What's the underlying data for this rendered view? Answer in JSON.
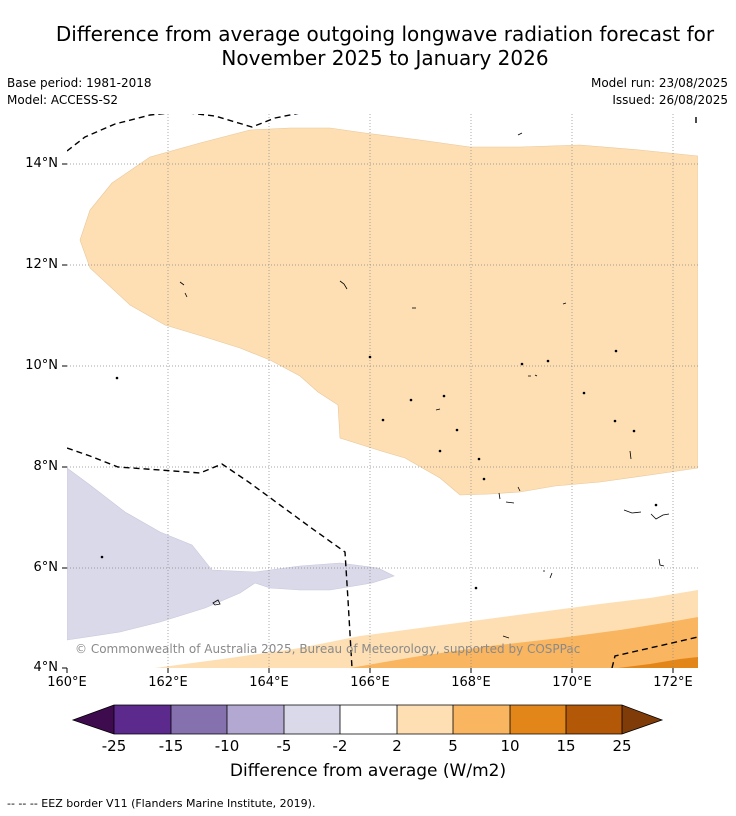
{
  "header": {
    "title_line1": "Difference from average outgoing longwave radiation forecast for",
    "title_line2": "November 2025 to January 2026"
  },
  "meta": {
    "base_period": "Base period: 1981-2018",
    "model": "Model: ACCESS-S2",
    "model_run": "Model run: 23/08/2025",
    "issued": "Issued: 26/08/2025"
  },
  "map": {
    "lat_labels": [
      "14°N",
      "12°N",
      "10°N",
      "8°N",
      "6°N",
      "4°N"
    ],
    "lon_labels": [
      "160°E",
      "162°E",
      "164°E",
      "166°E",
      "168°E",
      "170°E",
      "172°E"
    ],
    "copyright": "© Commonwealth of Australia 2025, Bureau of Meteorology, supported by COSPPac",
    "colors": {
      "positive_2_5": "#fddfb3",
      "positive_5_10": "#f9b55f",
      "positive_10_15": "#e3861a",
      "negative_2_5": "#d9d9ea"
    }
  },
  "colorbar": {
    "ticks": [
      "-25",
      "-15",
      "-10",
      "-5",
      "-2",
      "2",
      "5",
      "10",
      "15",
      "25"
    ],
    "label": "Difference from average (W/m2)",
    "colors": [
      "#3f0b4f",
      "#5b2a8c",
      "#8471ae",
      "#b2a8d1",
      "#d9d9ea",
      "#ffffff",
      "#fddfb3",
      "#f9b55f",
      "#e3861a",
      "#b35806",
      "#7f3b08"
    ]
  },
  "footer": {
    "eez_note": "--  --  -- EEZ border V11 (Flanders Marine Institute, 2019)."
  }
}
